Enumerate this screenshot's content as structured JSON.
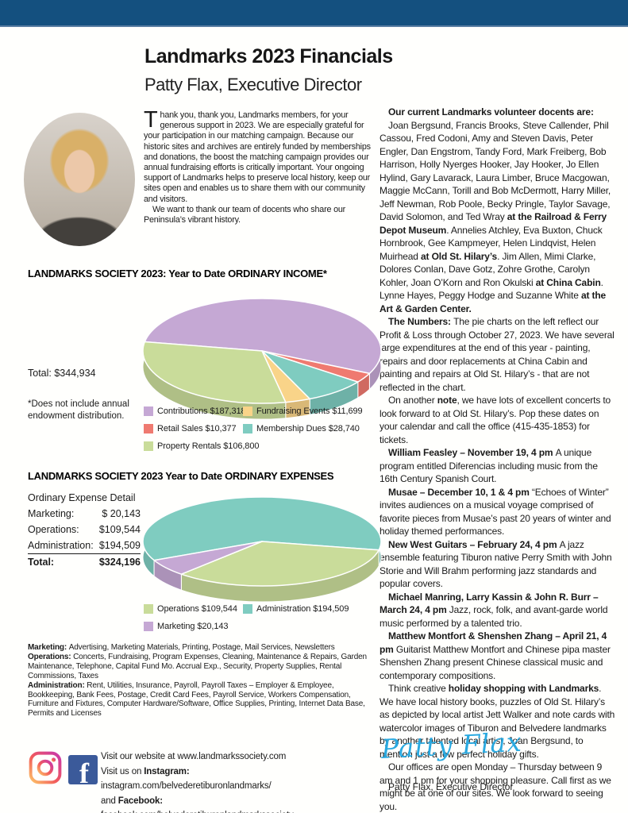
{
  "page": {
    "top_bar_color": "#14507f",
    "title": "Landmarks 2023 Financials",
    "subtitle": "Patty Flax, Executive Director"
  },
  "intro": {
    "drop_cap": "T",
    "p1_rest": "hank you, thank you, Landmarks members, for your generous support in 2023. We are especially grateful for your participation in our matching campaign. Because our historic sites and archives are entirely funded by memberships and donations, the boost the matching campaign provides our annual fundraising efforts is critically important. Your ongoing support of Landmarks helps to preserve local history, keep our sites open and enables us to share them with our community and visitors.",
    "p2": "We want to thank our team of docents who share our Peninsula’s vibrant history."
  },
  "right_column": {
    "paragraphs": [
      {
        "segments": [
          {
            "t": "Our current Landmarks volunteer docents are:",
            "b": true
          }
        ]
      },
      {
        "segments": [
          {
            "t": "Joan Bergsund, Francis Brooks, Steve Callender, Phil Cassou, Fred Codoni, Amy and Steven Davis, Peter Engler, Dan Engstrom, Tandy Ford, Mark Freiberg, Bob Harrison, Holly Nyerges Hooker, Jay Hooker, Jo Ellen Hylind, Gary Lavarack, Laura Limber, Bruce Macgowan, Maggie McCann, Torill and Bob McDermott, Harry Miller, Jeff Newman, Rob Poole, Becky Pringle, Taylor Savage, David Solomon, and Ted Wray "
          },
          {
            "t": "at the Railroad & Ferry Depot Museum",
            "b": true
          },
          {
            "t": ". Annelies Atchley, Eva Buxton, Chuck Hornbrook, Gee Kampmeyer, Helen Lindqvist, Helen Muirhead "
          },
          {
            "t": "at Old St. Hilary’s",
            "b": true
          },
          {
            "t": ". Jim Allen, Mimi Clarke, Dolores Conlan, Dave Gotz, Zohre Grothe, Carolyn Kohler, Joan O’Korn and Ron Okulski "
          },
          {
            "t": "at China Cabin",
            "b": true
          },
          {
            "t": ". Lynne Hayes, Peggy Hodge and Suzanne White "
          },
          {
            "t": "at the Art & Garden Center.",
            "b": true
          }
        ]
      },
      {
        "segments": [
          {
            "t": "The Numbers: ",
            "b": true
          },
          {
            "t": "The pie charts on the left reflect our Profit & Loss through October 27, 2023. We have several large expenditures at the end of this year - painting, repairs and door replacements at China Cabin and painting and repairs at Old St. Hilary’s - that are not reflected in the chart."
          }
        ]
      },
      {
        "segments": [
          {
            "t": "On another "
          },
          {
            "t": "note",
            "b": true
          },
          {
            "t": ", we have lots of excellent concerts to look forward to at Old St. Hilary’s. Pop these dates on your calendar and call the office (415-435-1853) for tickets."
          }
        ]
      },
      {
        "segments": [
          {
            "t": "William Feasley – November 19, 4 pm ",
            "b": true
          },
          {
            "t": "A unique program entitled Diferencias including music from the 16th Century Spanish Court."
          }
        ]
      },
      {
        "segments": [
          {
            "t": "Musae – December 10, 1 & 4 pm ",
            "b": true
          },
          {
            "t": "“Echoes of Winter” invites audiences on a musical voyage comprised of favorite pieces from Musae’s past 20 years of winter and holiday themed performances."
          }
        ]
      },
      {
        "segments": [
          {
            "t": "New West Guitars – February 24, 4 pm ",
            "b": true
          },
          {
            "t": "A jazz ensemble featuring Tiburon native Perry Smith with John Storie and Will Brahm performing jazz standards and popular covers."
          }
        ]
      },
      {
        "segments": [
          {
            "t": "Michael Manring, Larry Kassin & John R. Burr – March 24, 4 pm ",
            "b": true
          },
          {
            "t": "Jazz, rock, folk, and avant-garde world music performed by a talented trio."
          }
        ]
      },
      {
        "segments": [
          {
            "t": "Matthew Montfort & Shenshen Zhang – April 21, 4 pm ",
            "b": true
          },
          {
            "t": "Guitarist Matthew Montfort and Chinese pipa master Shenshen Zhang present Chinese classical music and contemporary compositions."
          }
        ]
      },
      {
        "segments": [
          {
            "t": "Think creative "
          },
          {
            "t": "holiday shopping with Landmarks",
            "b": true
          },
          {
            "t": ". We have local history books, puzzles of Old St. Hilary’s as depicted by local artist Jett Walker and note cards with watercolor images of Tiburon and Belvedere landmarks by another talented local artist, Joan Bergsund, to mention just a few perfect holiday gifts."
          }
        ]
      },
      {
        "segments": [
          {
            "t": "Our offices are open Monday – Thursday between 9 am and 1 pm for your shopping pleasure. Call first as we might be at one of our sites. We look forward to seeing you."
          }
        ]
      }
    ]
  },
  "chart_data": [
    {
      "type": "pie",
      "title": "LANDMARKS SOCIETY 2023: Year to Date ORDINARY INCOME*",
      "total_label": "Total: $344,934",
      "total": 344934,
      "footnote": "*Does not include annual endowment distribution.",
      "slices": [
        {
          "label": "Contributions",
          "value": 187318,
          "display": "Contributions $187,318",
          "color": "#c5a8d4"
        },
        {
          "label": "Retail Sales",
          "value": 10377,
          "display": "Retail Sales $10,377",
          "color": "#ef7a70"
        },
        {
          "label": "Membership Dues",
          "value": 28740,
          "display": "Membership Dues $28,740",
          "color": "#7fccc0"
        },
        {
          "label": "Fundraising Events",
          "value": 11699,
          "display": "Fundraising Events $11,699",
          "color": "#f9d489"
        },
        {
          "label": "Property Rentals",
          "value": 106800,
          "display": "Property Rentals $106,800",
          "color": "#c9dc9a"
        }
      ],
      "start_angle_deg": -170,
      "legend_position": "below",
      "legend_rows": [
        [
          0,
          3
        ],
        [
          1,
          2
        ],
        [
          4
        ]
      ]
    },
    {
      "type": "pie",
      "title": "LANDMARKS SOCIETY 2023 Year to Date ORDINARY EXPENSES",
      "total": 324196,
      "slices": [
        {
          "label": "Administration",
          "value": 194509,
          "display": "Administration $194,509",
          "color": "#7fccc0"
        },
        {
          "label": "Operations",
          "value": 109544,
          "display": "Operations $109,544",
          "color": "#c9dc9a"
        },
        {
          "label": "Marketing",
          "value": 20143,
          "display": "Marketing $20,143",
          "color": "#c5a8d4"
        }
      ],
      "start_angle_deg": -205,
      "legend_position": "below",
      "legend_rows": [
        [
          1,
          0
        ],
        [
          2
        ]
      ]
    }
  ],
  "expense_detail": {
    "title": "Ordinary Expense Detail",
    "rows": [
      {
        "label": "Marketing:",
        "amount": "$ 20,143"
      },
      {
        "label": "Operations:",
        "amount": "$109,544"
      },
      {
        "label": "Administration:",
        "amount": "$194,509"
      }
    ],
    "total_label": "Total:",
    "total_amount": "$324,196"
  },
  "footnotes": {
    "paragraphs": [
      {
        "segments": [
          {
            "t": "Marketing: ",
            "b": true
          },
          {
            "t": "Advertising, Marketing Materials, Printing, Postage, Mail Services, Newsletters"
          }
        ]
      },
      {
        "segments": [
          {
            "t": "Operations: ",
            "b": true
          },
          {
            "t": "Concerts, Fundraising, Program Expenses, Cleaning, Maintenance & Repairs, Garden Maintenance, Telephone, Capital Fund Mo. Accrual Exp., Security, Property Supplies, Rental Commissions, Taxes"
          }
        ]
      },
      {
        "segments": [
          {
            "t": "Administration: ",
            "b": true
          },
          {
            "t": "Rent, Utilities, Insurance, Payroll, Payroll Taxes – Employer & Employee, Bookkeeping, Bank Fees, Postage, Credit Card Fees, Payroll Service, Workers Compensation, Furniture and Fixtures, Computer Hardware/Software, Office Supplies, Printing, Internet Data Base, Permits and Licenses"
          }
        ]
      }
    ]
  },
  "social": {
    "instagram_icon": "instagram-logo",
    "facebook_icon": "facebook-logo",
    "facebook_letter": "f",
    "lines": [
      {
        "segments": [
          {
            "t": "Visit our website at www.landmarkssociety.com"
          }
        ]
      },
      {
        "segments": [
          {
            "t": "Visit us on "
          },
          {
            "t": "Instagram:",
            "b": true
          },
          {
            "t": " instagram.com/belvederetiburonlandmarks/"
          }
        ]
      },
      {
        "segments": [
          {
            "t": "and "
          },
          {
            "t": "Facebook:",
            "b": true
          },
          {
            "t": " facebook.com/belvederetiburonlandmarkssociety"
          }
        ]
      }
    ]
  },
  "signature": {
    "script": "Patty Flax",
    "caption": "Patty Flax, Executive Director",
    "color": "#2aa9e0"
  }
}
